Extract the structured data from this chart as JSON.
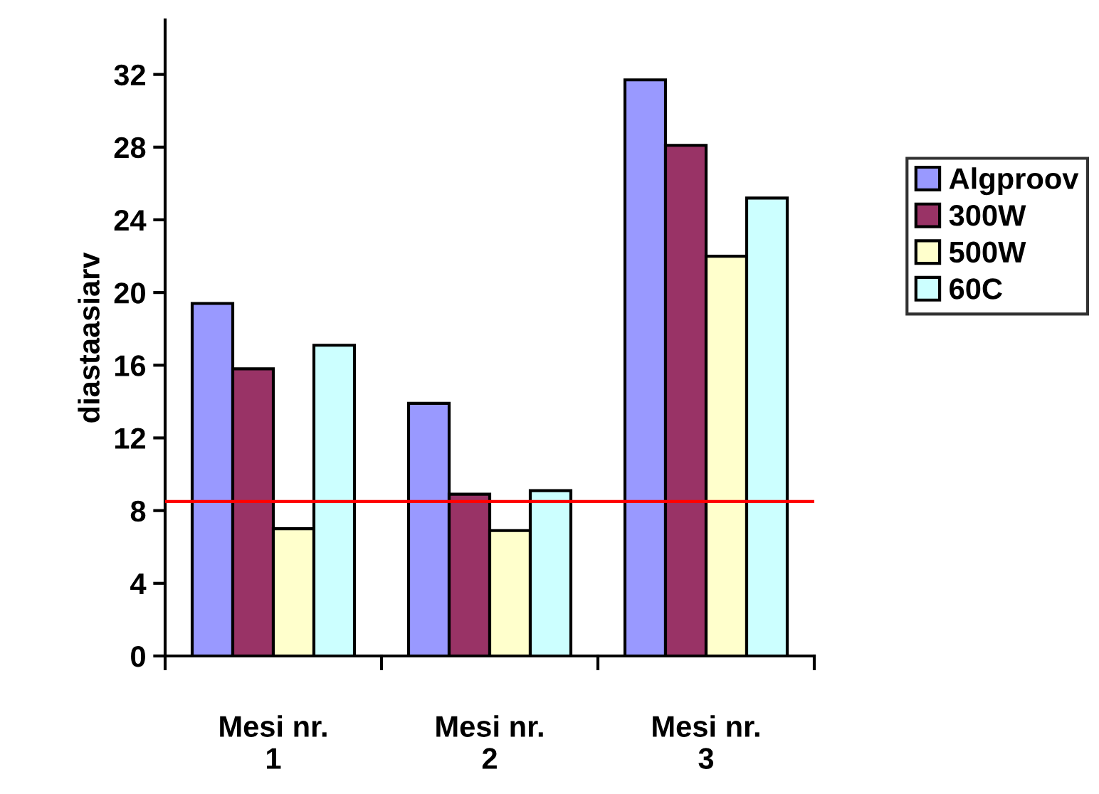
{
  "chart_data": {
    "type": "bar",
    "ylabel": "diastaasiarv",
    "categories": [
      "Mesi nr.\n1",
      "Mesi nr.\n2",
      "Mesi nr.\n3"
    ],
    "series": [
      {
        "name": "Algproov",
        "color": "#9999ff",
        "values": [
          19.4,
          13.9,
          31.7
        ]
      },
      {
        "name": "300W",
        "color": "#993366",
        "values": [
          15.8,
          8.9,
          28.1
        ]
      },
      {
        "name": "500W",
        "color": "#ffffcc",
        "values": [
          7.0,
          6.9,
          22.0
        ]
      },
      {
        "name": "60C",
        "color": "#ccffff",
        "values": [
          17.1,
          9.1,
          25.2
        ]
      }
    ],
    "ylim": [
      0,
      35
    ],
    "yticks": [
      0,
      4,
      8,
      12,
      16,
      20,
      24,
      28,
      32
    ],
    "ref_lines": [
      {
        "axis": "y",
        "value": 8.5,
        "color": "#ff0000"
      }
    ],
    "grid": false,
    "legend": "right"
  }
}
